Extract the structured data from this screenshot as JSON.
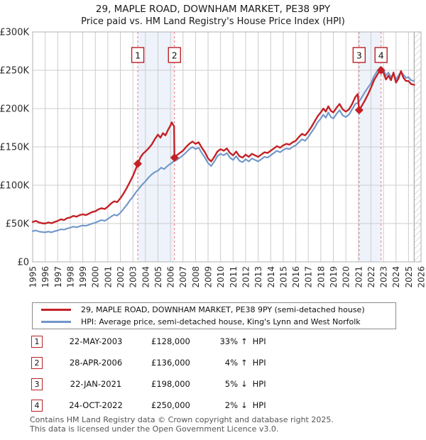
{
  "title": "29, MAPLE ROAD, DOWNHAM MARKET, PE38 9PY",
  "subtitle": "Price paid vs. HM Land Registry's House Price Index (HPI)",
  "chart_data": {
    "type": "line",
    "x_axis": {
      "start": 1995,
      "end": 2026,
      "ticks": [
        1995,
        1996,
        1997,
        1998,
        1999,
        2000,
        2001,
        2002,
        2003,
        2004,
        2005,
        2006,
        2007,
        2008,
        2009,
        2010,
        2011,
        2012,
        2013,
        2014,
        2015,
        2016,
        2017,
        2018,
        2019,
        2020,
        2021,
        2022,
        2023,
        2024,
        2025,
        2026
      ]
    },
    "y_axis": {
      "unit": "GBP_thousands",
      "min": 0,
      "max": 300,
      "tick_values": [
        0,
        50,
        100,
        150,
        200,
        250,
        300
      ],
      "tick_labels": [
        "£0",
        "£50K",
        "£100K",
        "£150K",
        "£200K",
        "£250K",
        "£300K"
      ]
    },
    "grid": true,
    "legend_position": "below",
    "future_hatch_start": 2025.45,
    "colors": {
      "price_paid": "#c42126",
      "hpi": "#7096c8",
      "sale_line": "#f17373",
      "band_fill": "#eef3fb",
      "gridline": "#cccccc",
      "plot_border": "#b0b0b0",
      "hatch_line": "#c9ced6"
    },
    "series": [
      {
        "name": "29, MAPLE ROAD, DOWNHAM MARKET, PE38 9PY (semi-detached house)",
        "key": "price_paid",
        "points": [
          [
            1995,
            52
          ],
          [
            1995.25,
            53.5
          ],
          [
            1995.5,
            51.5
          ],
          [
            1995.75,
            50.5
          ],
          [
            1996,
            50
          ],
          [
            1996.25,
            51.5
          ],
          [
            1996.5,
            50.5
          ],
          [
            1996.75,
            52
          ],
          [
            1997,
            53.5
          ],
          [
            1997.25,
            55.5
          ],
          [
            1997.5,
            54.5
          ],
          [
            1997.75,
            57
          ],
          [
            1998,
            58
          ],
          [
            1998.25,
            60
          ],
          [
            1998.5,
            59
          ],
          [
            1998.75,
            61
          ],
          [
            1999,
            62
          ],
          [
            1999.25,
            61
          ],
          [
            1999.5,
            63
          ],
          [
            1999.75,
            65
          ],
          [
            2000,
            66
          ],
          [
            2000.25,
            68.5
          ],
          [
            2000.5,
            70
          ],
          [
            2000.75,
            69
          ],
          [
            2001,
            72
          ],
          [
            2001.25,
            76
          ],
          [
            2001.5,
            79
          ],
          [
            2001.75,
            78
          ],
          [
            2002,
            83
          ],
          [
            2002.25,
            89
          ],
          [
            2002.5,
            96
          ],
          [
            2002.75,
            104
          ],
          [
            2003,
            112
          ],
          [
            2003.2,
            120
          ],
          [
            2003.39,
            128
          ],
          [
            2003.6,
            136
          ],
          [
            2003.8,
            141
          ],
          [
            2004,
            144
          ],
          [
            2004.25,
            148
          ],
          [
            2004.5,
            153
          ],
          [
            2004.75,
            160
          ],
          [
            2005,
            166
          ],
          [
            2005.2,
            162
          ],
          [
            2005.4,
            168
          ],
          [
            2005.6,
            165
          ],
          [
            2005.8,
            172
          ],
          [
            2006,
            178
          ],
          [
            2006.1,
            182
          ],
          [
            2006.2,
            179
          ],
          [
            2006.29,
            177
          ],
          [
            2006.32,
            136
          ],
          [
            2006.5,
            139
          ],
          [
            2006.75,
            142
          ],
          [
            2007,
            145
          ],
          [
            2007.25,
            150
          ],
          [
            2007.5,
            154
          ],
          [
            2007.75,
            157
          ],
          [
            2008,
            154
          ],
          [
            2008.25,
            156
          ],
          [
            2008.5,
            149
          ],
          [
            2008.75,
            143
          ],
          [
            2009,
            135
          ],
          [
            2009.25,
            131
          ],
          [
            2009.5,
            137
          ],
          [
            2009.75,
            144
          ],
          [
            2010,
            147
          ],
          [
            2010.25,
            145
          ],
          [
            2010.5,
            148
          ],
          [
            2010.75,
            142
          ],
          [
            2011,
            139
          ],
          [
            2011.25,
            144
          ],
          [
            2011.5,
            138
          ],
          [
            2011.75,
            136
          ],
          [
            2012,
            140
          ],
          [
            2012.25,
            137
          ],
          [
            2012.5,
            141
          ],
          [
            2012.75,
            139
          ],
          [
            2013,
            137
          ],
          [
            2013.25,
            140
          ],
          [
            2013.5,
            143
          ],
          [
            2013.75,
            142
          ],
          [
            2014,
            145
          ],
          [
            2014.25,
            148
          ],
          [
            2014.5,
            151
          ],
          [
            2014.75,
            149
          ],
          [
            2015,
            152
          ],
          [
            2015.25,
            154
          ],
          [
            2015.5,
            153
          ],
          [
            2015.75,
            156
          ],
          [
            2016,
            158
          ],
          [
            2016.25,
            163
          ],
          [
            2016.5,
            167
          ],
          [
            2016.75,
            165
          ],
          [
            2017,
            170
          ],
          [
            2017.25,
            176
          ],
          [
            2017.5,
            183
          ],
          [
            2017.75,
            190
          ],
          [
            2018,
            195
          ],
          [
            2018.2,
            200
          ],
          [
            2018.4,
            196
          ],
          [
            2018.6,
            203
          ],
          [
            2018.8,
            197
          ],
          [
            2019,
            195
          ],
          [
            2019.25,
            201
          ],
          [
            2019.5,
            206
          ],
          [
            2019.75,
            199
          ],
          [
            2020,
            196
          ],
          [
            2020.25,
            199
          ],
          [
            2020.5,
            206
          ],
          [
            2020.75,
            215
          ],
          [
            2020.95,
            219
          ],
          [
            2021.06,
            198
          ],
          [
            2021.25,
            203
          ],
          [
            2021.5,
            210
          ],
          [
            2021.75,
            218
          ],
          [
            2022,
            227
          ],
          [
            2022.25,
            237
          ],
          [
            2022.5,
            244
          ],
          [
            2022.65,
            248
          ],
          [
            2022.81,
            250
          ],
          [
            2023,
            247
          ],
          [
            2023.2,
            238
          ],
          [
            2023.4,
            243
          ],
          [
            2023.6,
            237
          ],
          [
            2023.8,
            247
          ],
          [
            2024,
            234
          ],
          [
            2024.2,
            239
          ],
          [
            2024.4,
            249
          ],
          [
            2024.6,
            240
          ],
          [
            2024.8,
            236
          ],
          [
            2025,
            236
          ],
          [
            2025.2,
            232
          ],
          [
            2025.45,
            231
          ]
        ]
      },
      {
        "name": "HPI: Average price, semi-detached house, King's Lynn and West Norfolk",
        "key": "hpi",
        "points": [
          [
            1995,
            40
          ],
          [
            1995.25,
            41
          ],
          [
            1995.5,
            39.5
          ],
          [
            1995.75,
            39
          ],
          [
            1996,
            38.5
          ],
          [
            1996.25,
            39.5
          ],
          [
            1996.5,
            38.5
          ],
          [
            1996.75,
            40
          ],
          [
            1997,
            41
          ],
          [
            1997.25,
            42.5
          ],
          [
            1997.5,
            42
          ],
          [
            1997.75,
            43.5
          ],
          [
            1998,
            44.5
          ],
          [
            1998.25,
            46
          ],
          [
            1998.5,
            45
          ],
          [
            1998.75,
            46.5
          ],
          [
            1999,
            47.5
          ],
          [
            1999.25,
            47
          ],
          [
            1999.5,
            48.5
          ],
          [
            1999.75,
            50
          ],
          [
            2000,
            51
          ],
          [
            2000.25,
            53
          ],
          [
            2000.5,
            54.5
          ],
          [
            2000.75,
            53.5
          ],
          [
            2001,
            56
          ],
          [
            2001.25,
            59
          ],
          [
            2001.5,
            61.5
          ],
          [
            2001.75,
            60.5
          ],
          [
            2002,
            64
          ],
          [
            2002.25,
            69
          ],
          [
            2002.5,
            74
          ],
          [
            2002.75,
            80
          ],
          [
            2003,
            85
          ],
          [
            2003.25,
            91
          ],
          [
            2003.5,
            96
          ],
          [
            2003.75,
            101
          ],
          [
            2004,
            105
          ],
          [
            2004.25,
            110
          ],
          [
            2004.5,
            114
          ],
          [
            2004.75,
            117
          ],
          [
            2005,
            119
          ],
          [
            2005.25,
            123
          ],
          [
            2005.5,
            121
          ],
          [
            2005.75,
            125
          ],
          [
            2006,
            128
          ],
          [
            2006.25,
            131
          ],
          [
            2006.5,
            133
          ],
          [
            2006.75,
            136
          ],
          [
            2007,
            139
          ],
          [
            2007.25,
            143
          ],
          [
            2007.5,
            147
          ],
          [
            2007.75,
            150
          ],
          [
            2008,
            147
          ],
          [
            2008.25,
            149
          ],
          [
            2008.5,
            142
          ],
          [
            2008.75,
            136
          ],
          [
            2009,
            129
          ],
          [
            2009.25,
            125
          ],
          [
            2009.5,
            131
          ],
          [
            2009.75,
            138
          ],
          [
            2010,
            141
          ],
          [
            2010.25,
            139
          ],
          [
            2010.5,
            142
          ],
          [
            2010.75,
            136
          ],
          [
            2011,
            133
          ],
          [
            2011.25,
            138
          ],
          [
            2011.5,
            132
          ],
          [
            2011.75,
            130
          ],
          [
            2012,
            134
          ],
          [
            2012.25,
            131
          ],
          [
            2012.5,
            135
          ],
          [
            2012.75,
            133
          ],
          [
            2013,
            131
          ],
          [
            2013.25,
            134
          ],
          [
            2013.5,
            137
          ],
          [
            2013.75,
            136
          ],
          [
            2014,
            139
          ],
          [
            2014.25,
            142
          ],
          [
            2014.5,
            145
          ],
          [
            2014.75,
            143
          ],
          [
            2015,
            146
          ],
          [
            2015.25,
            148
          ],
          [
            2015.5,
            147
          ],
          [
            2015.75,
            150
          ],
          [
            2016,
            152
          ],
          [
            2016.25,
            156
          ],
          [
            2016.5,
            160
          ],
          [
            2016.75,
            158
          ],
          [
            2017,
            163
          ],
          [
            2017.25,
            169
          ],
          [
            2017.5,
            175
          ],
          [
            2017.75,
            182
          ],
          [
            2018,
            187
          ],
          [
            2018.2,
            192
          ],
          [
            2018.4,
            188
          ],
          [
            2018.6,
            195
          ],
          [
            2018.8,
            189
          ],
          [
            2019,
            187
          ],
          [
            2019.25,
            193
          ],
          [
            2019.5,
            198
          ],
          [
            2019.75,
            191
          ],
          [
            2020,
            189
          ],
          [
            2020.25,
            192
          ],
          [
            2020.5,
            199
          ],
          [
            2020.75,
            206
          ],
          [
            2021,
            208
          ],
          [
            2021.25,
            214
          ],
          [
            2021.5,
            221
          ],
          [
            2021.75,
            227
          ],
          [
            2022,
            233
          ],
          [
            2022.25,
            242
          ],
          [
            2022.5,
            249
          ],
          [
            2022.75,
            254
          ],
          [
            2023,
            251
          ],
          [
            2023.2,
            243
          ],
          [
            2023.4,
            247
          ],
          [
            2023.6,
            241
          ],
          [
            2023.8,
            245
          ],
          [
            2024,
            238
          ],
          [
            2024.2,
            243
          ],
          [
            2024.4,
            248
          ],
          [
            2024.6,
            244
          ],
          [
            2024.8,
            240
          ],
          [
            2025,
            241
          ],
          [
            2025.2,
            237
          ],
          [
            2025.45,
            236
          ]
        ]
      }
    ],
    "sales": [
      {
        "label": "1",
        "x": 2003.39,
        "price_k": 128,
        "date": "22-MAY-2003",
        "price": "£128,000",
        "hpi_diff": "33%",
        "direction": "↑",
        "vs": "HPI"
      },
      {
        "label": "2",
        "x": 2006.32,
        "price_k": 136,
        "date": "28-APR-2006",
        "price": "£136,000",
        "hpi_diff": "4%",
        "direction": "↑",
        "vs": "HPI"
      },
      {
        "label": "3",
        "x": 2021.06,
        "price_k": 198,
        "date": "22-JAN-2021",
        "price": "£198,000",
        "hpi_diff": "5%",
        "direction": "↓",
        "vs": "HPI"
      },
      {
        "label": "4",
        "x": 2022.81,
        "price_k": 250,
        "date": "24-OCT-2022",
        "price": "£250,000",
        "hpi_diff": "2%",
        "direction": "↓",
        "vs": "HPI"
      }
    ],
    "bands": [
      [
        2003.39,
        2006.32
      ],
      [
        2021.06,
        2022.81
      ]
    ]
  },
  "legend": [
    {
      "label": "29, MAPLE ROAD, DOWNHAM MARKET, PE38 9PY (semi-detached house)",
      "color": "#c42126"
    },
    {
      "label": "HPI: Average price, semi-detached house, King's Lynn and West Norfolk",
      "color": "#7096c8"
    }
  ],
  "footer": {
    "line1": "Contains HM Land Registry data © Crown copyright and database right 2025.",
    "line2": "This data is licensed under the Open Government Licence v3.0."
  }
}
